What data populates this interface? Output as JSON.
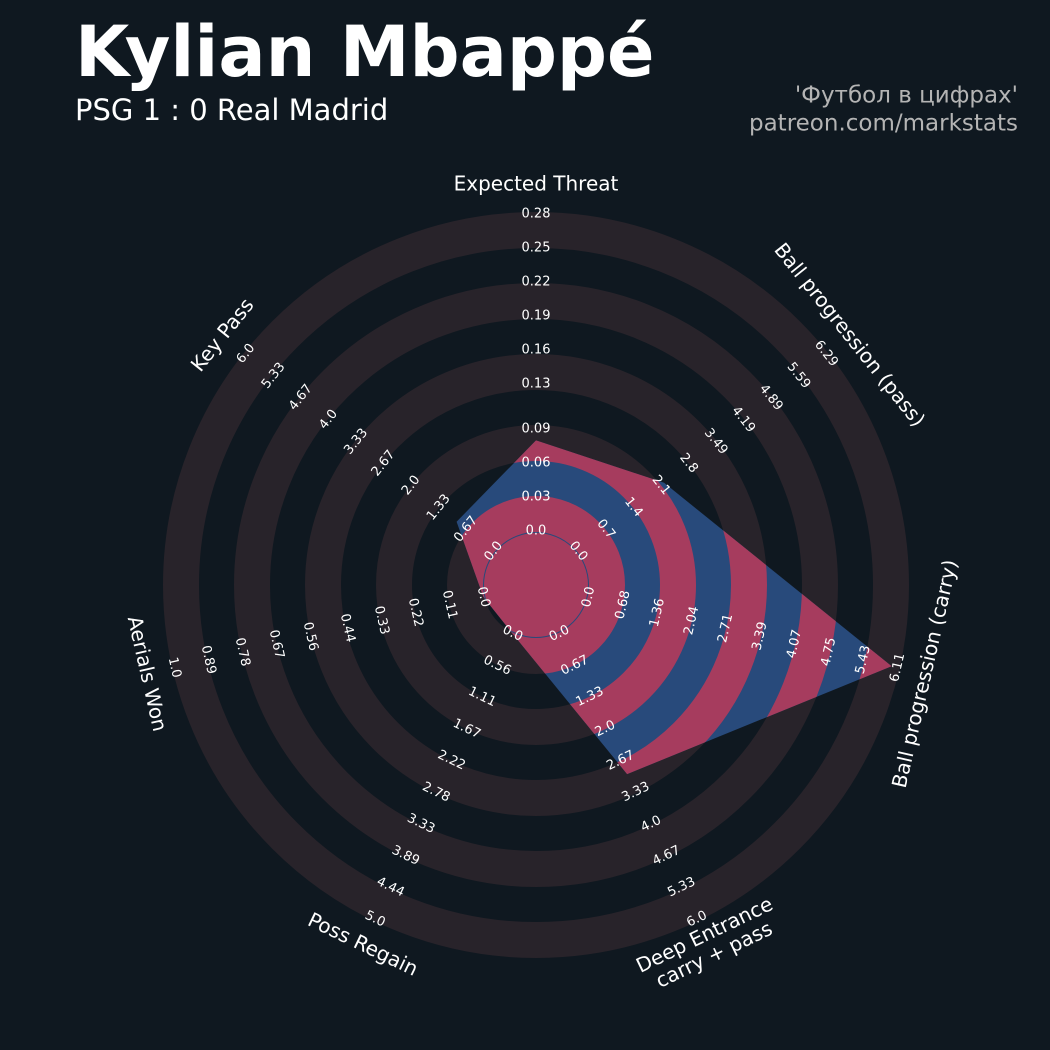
{
  "chart_data": {
    "type": "radar",
    "title": "Kylian Mbappé",
    "subtitle": "PSG 1 : 0 Real Madrid",
    "credits": [
      "'Футбол в цифрах'",
      "patreon.com/markstats"
    ],
    "categories": [
      "Expected Threat",
      "Ball progression (pass)",
      "Ball progression (carry)",
      "Deep Entrance\ncarry + pass",
      "Poss Regain",
      "Aerials Won",
      "Key Pass"
    ],
    "values": [
      0.08,
      2.18,
      5.99,
      2.95,
      0,
      0,
      0.9
    ],
    "color": "#284a7b",
    "ring_color": "#a63c5e",
    "axes": [
      {
        "lim": [
          0,
          0.28
        ],
        "ticks": [
          {
            "value": 0,
            "label": "0.0"
          },
          0.03,
          0.06,
          0.09,
          0.13,
          0.16,
          0.19,
          0.22,
          0.25,
          0.28
        ]
      },
      {
        "lim": [
          0,
          6.29
        ],
        "ticks": [
          {
            "value": 0,
            "label": "0.0"
          },
          0.7,
          1.4,
          2.1,
          2.8,
          3.49,
          4.19,
          4.89,
          5.59,
          6.29
        ]
      },
      {
        "lim": [
          0,
          6.11
        ],
        "ticks": [
          {
            "value": 0,
            "label": "0.0"
          },
          0.68,
          1.36,
          2.04,
          2.71,
          3.39,
          4.07,
          4.75,
          5.43,
          6.11
        ]
      },
      {
        "lim": [
          0,
          6
        ],
        "ticks": [
          {
            "value": 0,
            "label": "0.0"
          },
          0.67,
          1.33,
          {
            "value": 2,
            "label": "2.0"
          },
          2.67,
          3.33,
          {
            "value": 4,
            "label": "4.0"
          },
          4.67,
          5.33,
          {
            "value": 6,
            "label": "6.0"
          }
        ]
      },
      {
        "lim": [
          0,
          5
        ],
        "ticks": [
          {
            "value": 0,
            "label": "0.0"
          },
          0.56,
          1.11,
          1.67,
          2.22,
          2.78,
          3.33,
          3.89,
          4.44,
          {
            "value": 5,
            "label": "5.0"
          }
        ]
      },
      {
        "lim": [
          0,
          1
        ],
        "ticks": [
          {
            "value": 0,
            "label": "0.0"
          },
          0.11,
          0.22,
          0.33,
          0.44,
          0.56,
          0.67,
          0.78,
          0.89,
          {
            "value": 1,
            "label": "1.0"
          }
        ]
      },
      {
        "lim": [
          0,
          6
        ],
        "ticks": [
          {
            "value": 0,
            "label": "0.0"
          },
          0.67,
          1.33,
          {
            "value": 2,
            "label": "2.0"
          },
          2.67,
          3.33,
          {
            "value": 4,
            "label": "4.0"
          },
          4.67,
          5.33,
          {
            "value": 6,
            "label": "6.0"
          }
        ]
      }
    ]
  }
}
